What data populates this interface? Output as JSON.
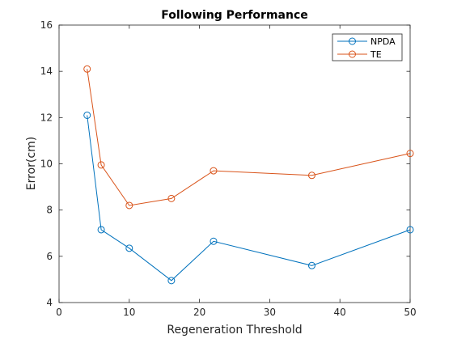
{
  "chart_data": {
    "type": "line",
    "title": "Following Performance",
    "xlabel": "Regeneration Threshold",
    "ylabel": "Error(cm)",
    "xlim": [
      0,
      50
    ],
    "ylim": [
      4,
      16
    ],
    "xticks": [
      0,
      10,
      20,
      30,
      40,
      50
    ],
    "yticks": [
      4,
      6,
      8,
      10,
      12,
      14,
      16
    ],
    "grid": false,
    "legend_position": "top-right",
    "x": [
      4,
      6,
      10,
      16,
      22,
      36,
      50
    ],
    "series": [
      {
        "name": "NPDA",
        "color": "#0072BD",
        "marker": "circle",
        "values": [
          12.1,
          7.15,
          6.35,
          4.95,
          6.65,
          5.6,
          7.15
        ]
      },
      {
        "name": "TE",
        "color": "#D95319",
        "marker": "circle",
        "values": [
          14.1,
          9.95,
          8.2,
          8.5,
          9.7,
          9.5,
          10.45
        ]
      }
    ]
  }
}
